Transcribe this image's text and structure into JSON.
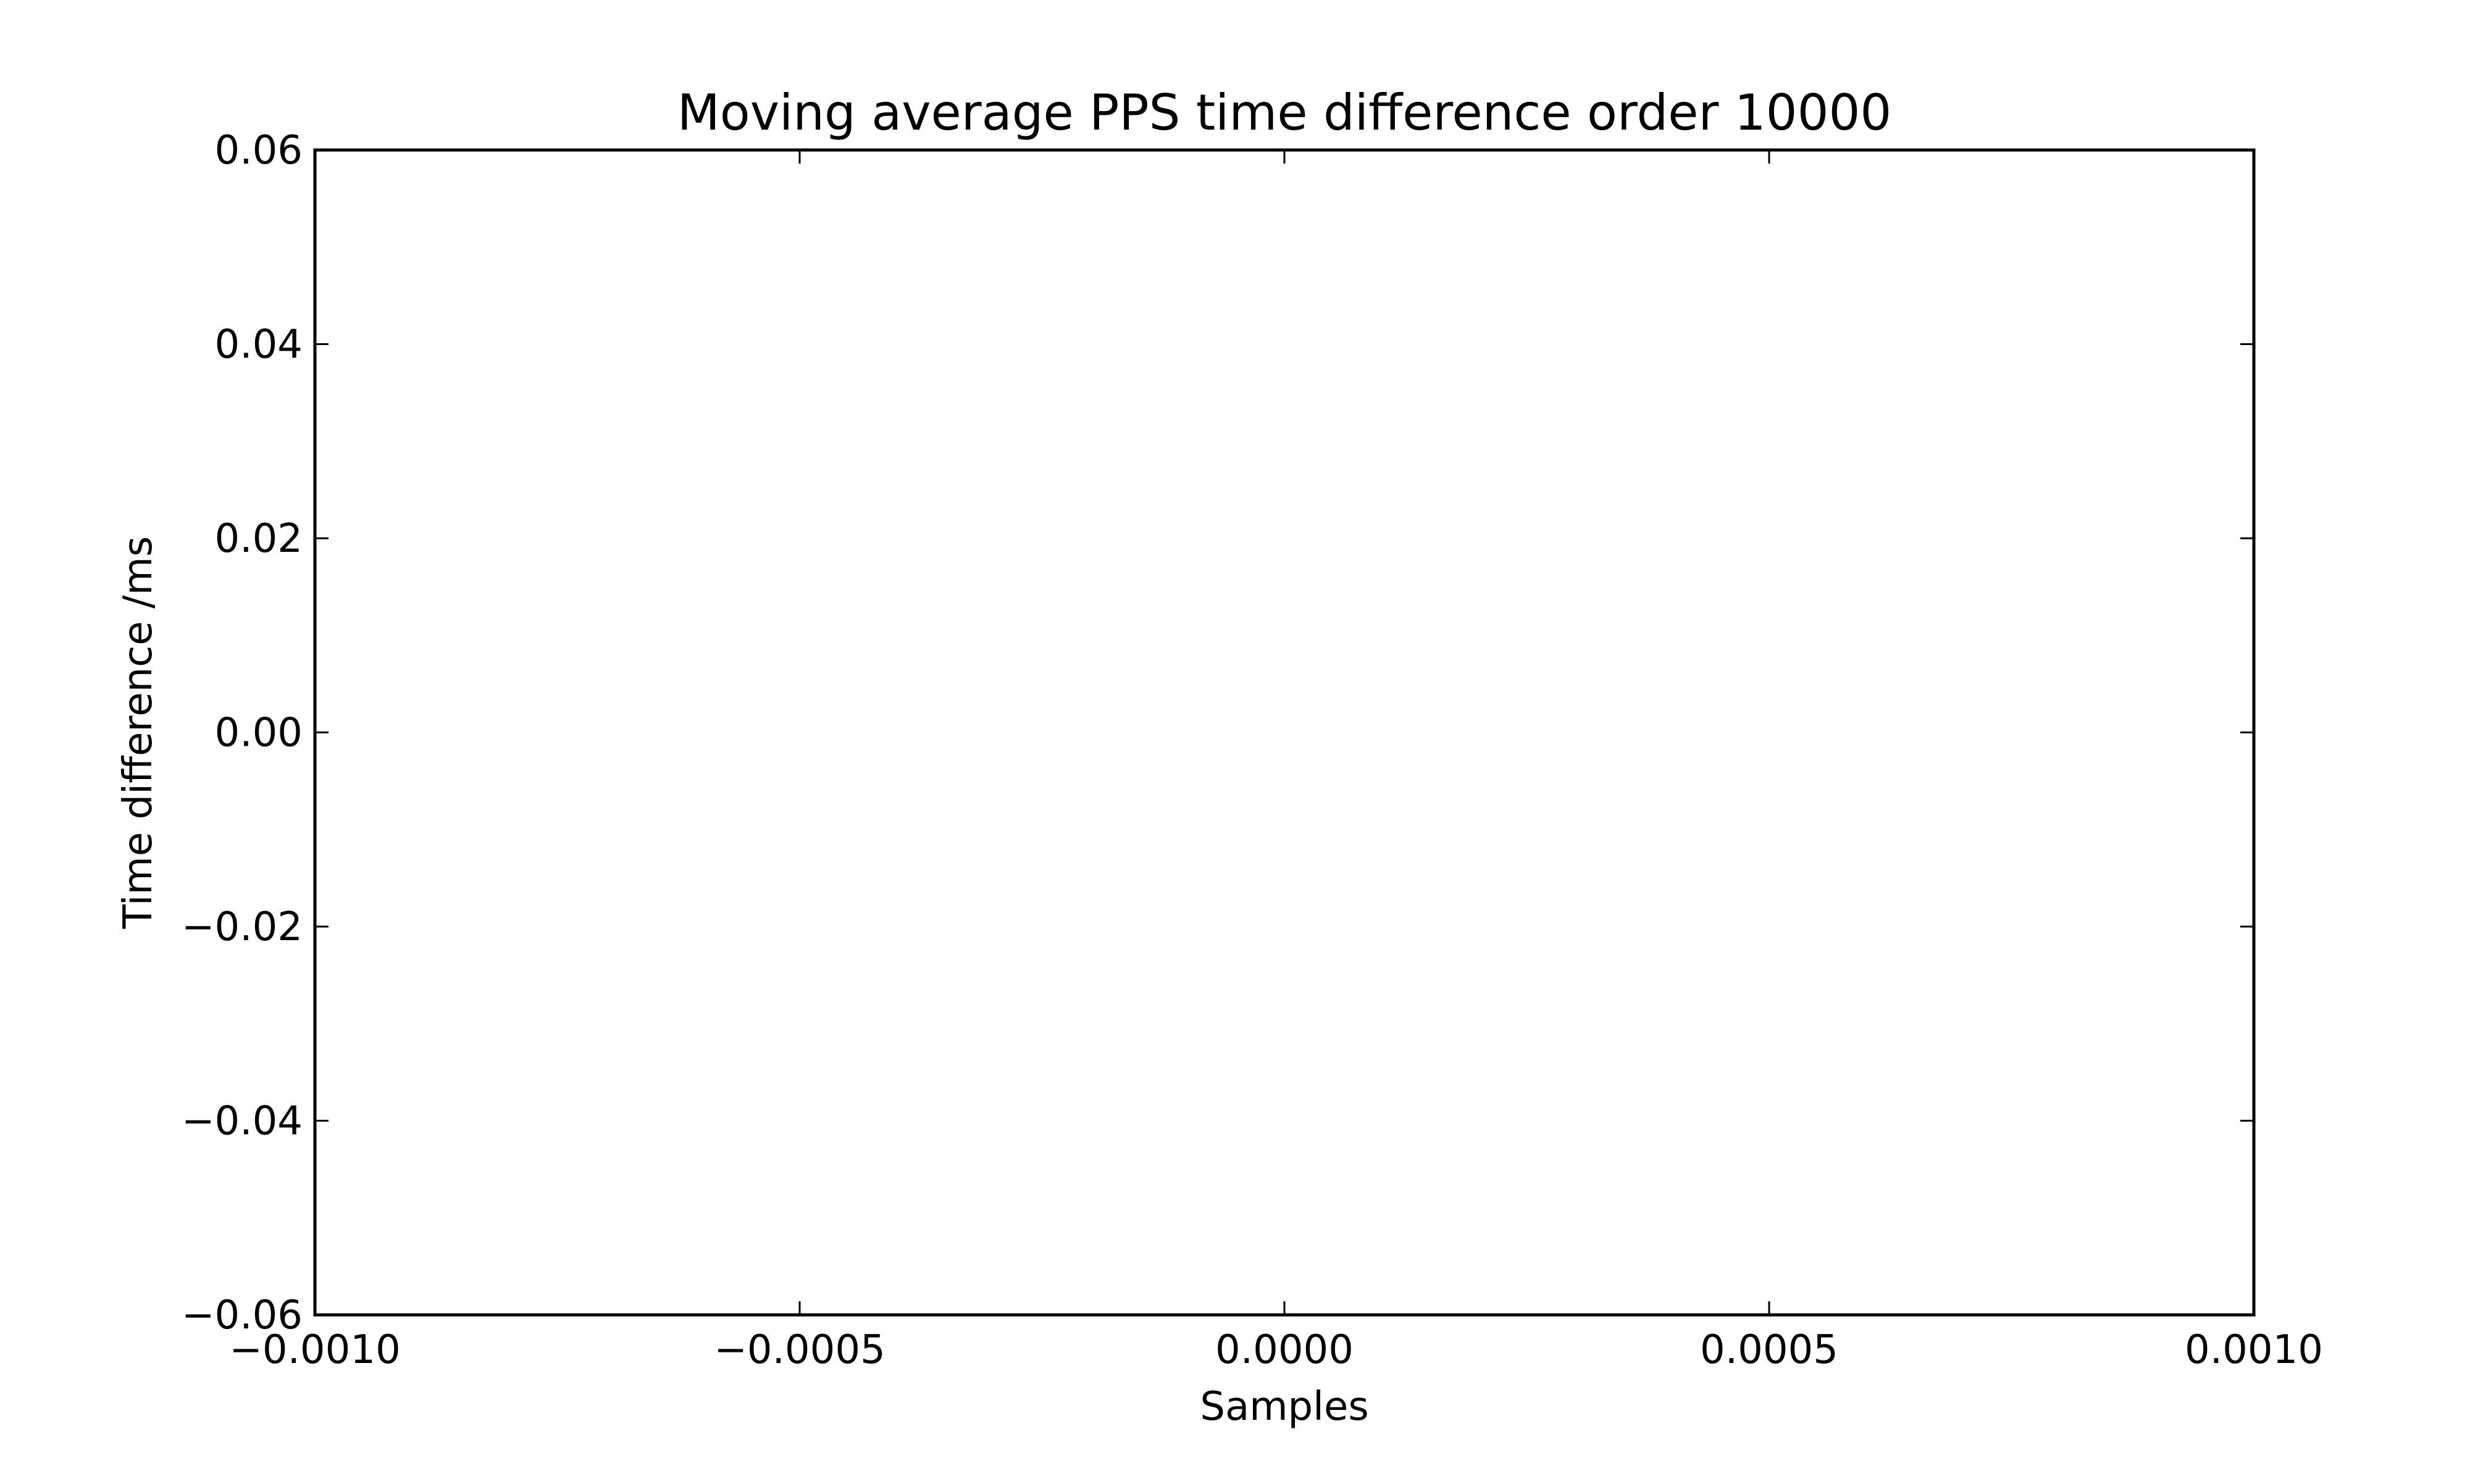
{
  "chart_data": {
    "type": "line",
    "title": "Moving average PPS time difference order 10000",
    "xlabel": "Samples",
    "ylabel": "Time difference /ms",
    "xlim": [
      -0.001,
      0.001
    ],
    "ylim": [
      -0.06,
      0.06
    ],
    "x_ticks": [
      {
        "value": -0.001,
        "label": "−0.0010"
      },
      {
        "value": -0.0005,
        "label": "−0.0005"
      },
      {
        "value": 0.0,
        "label": "0.0000"
      },
      {
        "value": 0.0005,
        "label": "0.0005"
      },
      {
        "value": 0.001,
        "label": "0.0010"
      }
    ],
    "y_ticks": [
      {
        "value": 0.06,
        "label": "0.06"
      },
      {
        "value": 0.04,
        "label": "0.04"
      },
      {
        "value": 0.02,
        "label": "0.02"
      },
      {
        "value": 0.0,
        "label": "0.00"
      },
      {
        "value": -0.02,
        "label": "−0.02"
      },
      {
        "value": -0.04,
        "label": "−0.04"
      },
      {
        "value": -0.06,
        "label": "−0.06"
      }
    ],
    "grid": false,
    "series": []
  }
}
